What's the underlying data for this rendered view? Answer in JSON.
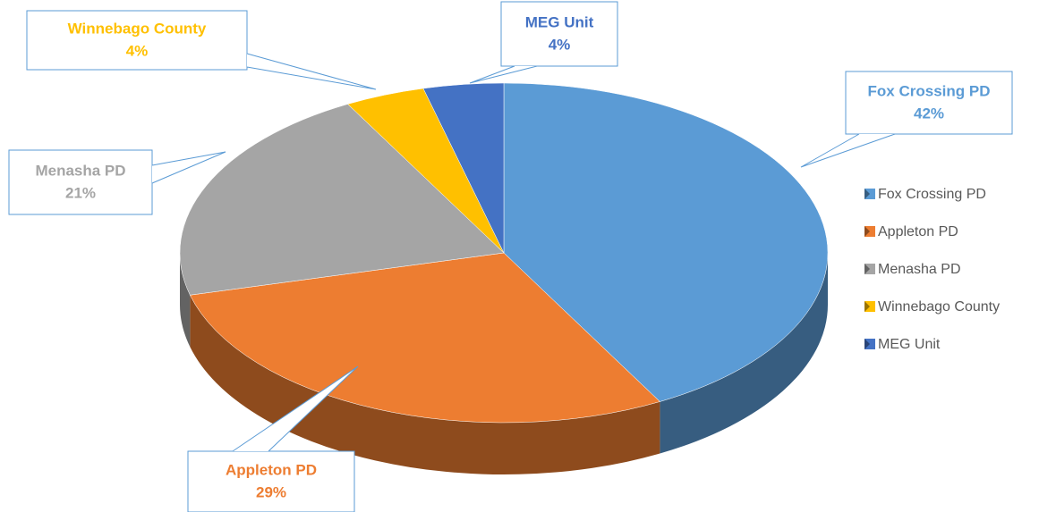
{
  "chart_data": {
    "type": "pie",
    "categories": [
      "Fox Crossing PD",
      "Appleton PD",
      "Menasha PD",
      "Winnebago County",
      "MEG Unit"
    ],
    "values": [
      42,
      29,
      21,
      4,
      4
    ],
    "value_labels": [
      "42%",
      "29%",
      "21%",
      "4%",
      "4%"
    ],
    "colors": [
      "#5b9bd5",
      "#ed7d31",
      "#a5a5a5",
      "#ffc000",
      "#4472c4"
    ],
    "legend": "right"
  }
}
